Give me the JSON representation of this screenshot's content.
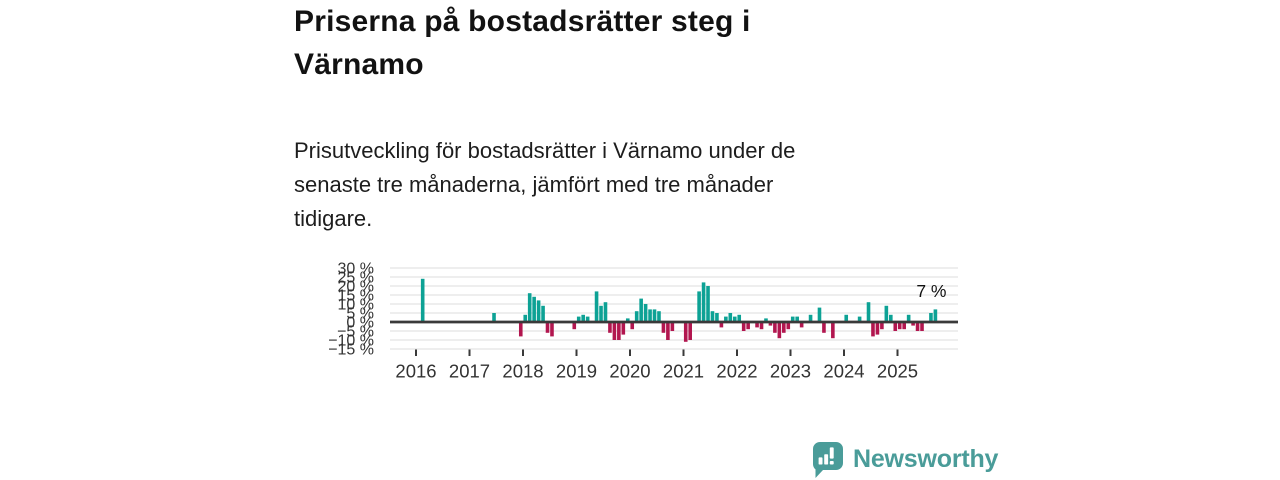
{
  "header": {
    "title_lines": [
      "Priserna på bostadsrätter steg i",
      "Värnamo"
    ],
    "subtitle_lines": [
      "Prisutveckling för bostadsrätter i Värnamo under de",
      "senaste tre månaderna, jämfört med tre månader",
      "tidigare."
    ]
  },
  "chart_data": {
    "type": "bar",
    "title": "Prisutveckling för bostadsrätter i Värnamo",
    "unit": "%",
    "ylim": [
      -15,
      30
    ],
    "grid": true,
    "legend": false,
    "y_ticks": [
      30,
      25,
      20,
      15,
      10,
      5,
      0,
      -5,
      -10,
      -15
    ],
    "y_tick_labels": [
      "30 %",
      "25 %",
      "20 %",
      "15 %",
      "10 %",
      "5 %",
      "0 %",
      "−5 %",
      "−10 %",
      "−15 %"
    ],
    "x_ticks": [
      "2016",
      "2017",
      "2018",
      "2019",
      "2020",
      "2021",
      "2022",
      "2023",
      "2024",
      "2025"
    ],
    "annotation": {
      "text": "7 %",
      "month": "2025-09",
      "value": 7
    },
    "colors": {
      "positive": "#0da295",
      "negative": "#b2164f",
      "zero_line": "#3a3a3a",
      "grid": "#dcdcdc",
      "axis_text": "#333333",
      "annotation_text": "#111111"
    },
    "points": [
      [
        "2016-02",
        24
      ],
      [
        "2017-06",
        5
      ],
      [
        "2017-12",
        -8
      ],
      [
        "2018-01",
        4
      ],
      [
        "2018-02",
        16
      ],
      [
        "2018-03",
        14
      ],
      [
        "2018-04",
        12
      ],
      [
        "2018-05",
        9
      ],
      [
        "2018-06",
        -6
      ],
      [
        "2018-07",
        -8
      ],
      [
        "2018-12",
        -4
      ],
      [
        "2019-01",
        3
      ],
      [
        "2019-02",
        4
      ],
      [
        "2019-03",
        3
      ],
      [
        "2019-05",
        17
      ],
      [
        "2019-06",
        9
      ],
      [
        "2019-07",
        11
      ],
      [
        "2019-08",
        -6
      ],
      [
        "2019-09",
        -10
      ],
      [
        "2019-10",
        -10
      ],
      [
        "2019-11",
        -7
      ],
      [
        "2019-12",
        2
      ],
      [
        "2020-01",
        -4
      ],
      [
        "2020-02",
        6
      ],
      [
        "2020-03",
        13
      ],
      [
        "2020-04",
        10
      ],
      [
        "2020-05",
        7
      ],
      [
        "2020-06",
        7
      ],
      [
        "2020-07",
        6
      ],
      [
        "2020-08",
        -6
      ],
      [
        "2020-09",
        -10
      ],
      [
        "2020-10",
        -5
      ],
      [
        "2021-01",
        -11
      ],
      [
        "2021-02",
        -10
      ],
      [
        "2021-04",
        17
      ],
      [
        "2021-05",
        22
      ],
      [
        "2021-06",
        20
      ],
      [
        "2021-07",
        6
      ],
      [
        "2021-08",
        5
      ],
      [
        "2021-09",
        -3
      ],
      [
        "2021-10",
        3
      ],
      [
        "2021-11",
        5
      ],
      [
        "2021-12",
        3
      ],
      [
        "2022-01",
        4
      ],
      [
        "2022-02",
        -5
      ],
      [
        "2022-03",
        -4
      ],
      [
        "2022-05",
        -3
      ],
      [
        "2022-06",
        -4
      ],
      [
        "2022-07",
        2
      ],
      [
        "2022-08",
        -2
      ],
      [
        "2022-09",
        -6
      ],
      [
        "2022-10",
        -9
      ],
      [
        "2022-11",
        -6
      ],
      [
        "2022-12",
        -4
      ],
      [
        "2023-01",
        3
      ],
      [
        "2023-02",
        3
      ],
      [
        "2023-03",
        -3
      ],
      [
        "2023-05",
        4
      ],
      [
        "2023-07",
        8
      ],
      [
        "2023-08",
        -6
      ],
      [
        "2023-10",
        -9
      ],
      [
        "2024-01",
        4
      ],
      [
        "2024-04",
        3
      ],
      [
        "2024-06",
        11
      ],
      [
        "2024-07",
        -8
      ],
      [
        "2024-08",
        -7
      ],
      [
        "2024-09",
        -4
      ],
      [
        "2024-10",
        9
      ],
      [
        "2024-11",
        4
      ],
      [
        "2024-12",
        -5
      ],
      [
        "2025-01",
        -4
      ],
      [
        "2025-02",
        -4
      ],
      [
        "2025-03",
        4
      ],
      [
        "2025-04",
        -2
      ],
      [
        "2025-05",
        -5
      ],
      [
        "2025-06",
        -5
      ],
      [
        "2025-08",
        5
      ],
      [
        "2025-09",
        7
      ]
    ]
  },
  "footer": {
    "brand": "Newsworthy"
  }
}
